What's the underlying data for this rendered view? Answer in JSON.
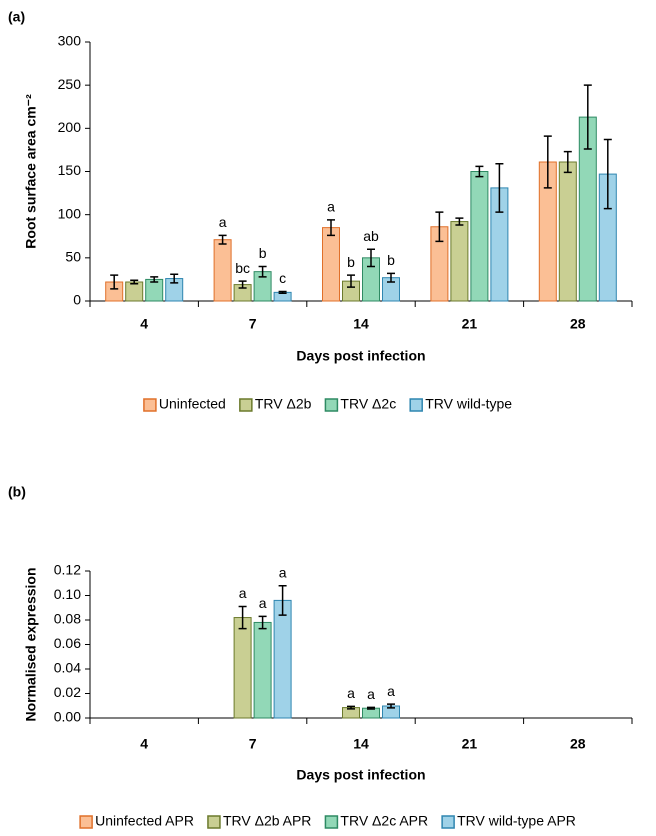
{
  "chart_data": [
    {
      "type": "bar",
      "title": "(a)",
      "ylabel": "Root surface area cm⁻²",
      "xlabel": "Days post infection",
      "categories": [
        "4",
        "7",
        "14",
        "21",
        "28"
      ],
      "ylim": [
        0,
        300
      ],
      "yticks": [
        0,
        50,
        100,
        150,
        200,
        250,
        300
      ],
      "legend": "bottom",
      "series": [
        {
          "name": "Uninfected",
          "color": "#fbbf95",
          "edgecolor": "#e0702a",
          "values": [
            22,
            71,
            85,
            86,
            161
          ],
          "errors": [
            8,
            5,
            9,
            17,
            30
          ],
          "letters": [
            null,
            "a",
            "a",
            null,
            null
          ]
        },
        {
          "name": "TRV Δ2b",
          "color": "#c9cf93",
          "edgecolor": "#6b7a2c",
          "values": [
            22,
            19,
            23,
            92,
            161
          ],
          "errors": [
            2,
            4,
            7,
            4,
            12
          ],
          "letters": [
            null,
            "bc",
            "b",
            null,
            null
          ]
        },
        {
          "name": "TRV Δ2c",
          "color": "#92d8b7",
          "edgecolor": "#2e8a63",
          "values": [
            25,
            34,
            50,
            150,
            213
          ],
          "errors": [
            3,
            6,
            10,
            6,
            37
          ],
          "letters": [
            null,
            "b",
            "ab",
            null,
            null
          ]
        },
        {
          "name": "TRV wild-type",
          "color": "#9fd2e8",
          "edgecolor": "#2f86b0",
          "values": [
            26,
            10,
            27,
            131,
            147
          ],
          "errors": [
            5,
            1,
            5,
            28,
            40
          ],
          "letters": [
            null,
            "c",
            "b",
            null,
            null
          ]
        }
      ]
    },
    {
      "type": "bar",
      "title": "(b)",
      "ylabel": "Normalised expression",
      "xlabel": "Days post infection",
      "categories": [
        "4",
        "7",
        "14",
        "21",
        "28"
      ],
      "ylim": [
        0,
        0.12
      ],
      "yticks": [
        {
          "value": 0,
          "label": "0.00"
        },
        {
          "value": 0.02,
          "label": "0.02"
        },
        {
          "value": 0.04,
          "label": "0.04"
        },
        {
          "value": 0.06,
          "label": "0.06"
        },
        {
          "value": 0.08,
          "label": "0.08"
        },
        {
          "value": 0.1,
          "label": "0.10"
        },
        {
          "value": 0.12,
          "label": "0.12"
        }
      ],
      "legend": "bottom",
      "series": [
        {
          "name": "Uninfected APR",
          "color": "#fbbf95",
          "edgecolor": "#e0702a",
          "values": [
            0,
            0,
            0,
            0,
            0
          ],
          "errors": [
            null,
            null,
            null,
            null,
            null
          ],
          "letters": [
            null,
            null,
            null,
            null,
            null
          ]
        },
        {
          "name": "TRV Δ2b APR",
          "color": "#c9cf93",
          "edgecolor": "#6b7a2c",
          "values": [
            0,
            0.082,
            0.0085,
            0,
            0
          ],
          "errors": [
            null,
            0.009,
            0.001,
            null,
            null
          ],
          "letters": [
            null,
            "a",
            "a",
            null,
            null
          ]
        },
        {
          "name": "TRV Δ2c APR",
          "color": "#92d8b7",
          "edgecolor": "#2e8a63",
          "values": [
            0,
            0.078,
            0.008,
            0,
            0
          ],
          "errors": [
            null,
            0.005,
            0.0007,
            null,
            null
          ],
          "letters": [
            null,
            "a",
            "a",
            null,
            null
          ]
        },
        {
          "name": "TRV wild-type APR",
          "color": "#9fd2e8",
          "edgecolor": "#2f86b0",
          "values": [
            0,
            0.096,
            0.0098,
            0,
            0
          ],
          "errors": [
            null,
            0.012,
            0.0015,
            null,
            null
          ],
          "letters": [
            null,
            "a",
            "a",
            null,
            null
          ]
        }
      ]
    }
  ]
}
